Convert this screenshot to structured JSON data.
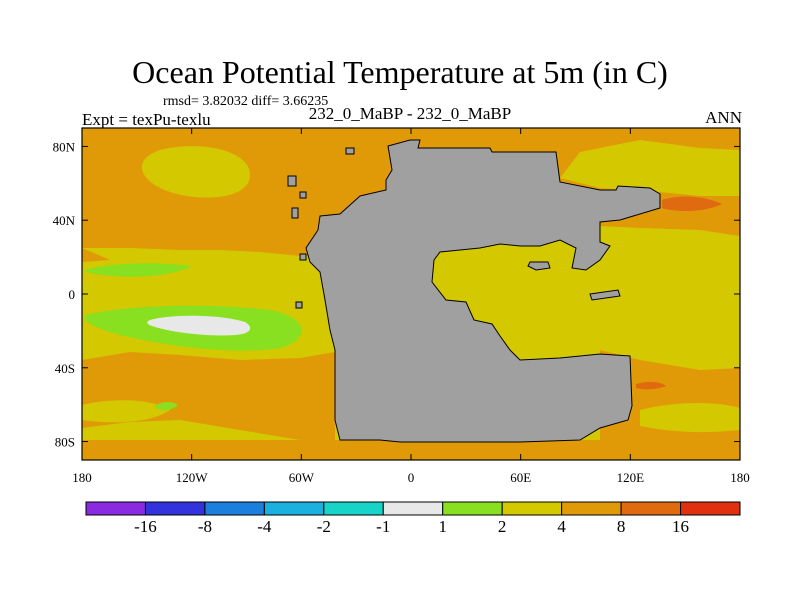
{
  "title": "Ocean Potential Temperature at 5m (in C)",
  "stats_line": "rmsd= 3.82032 diff= 3.66235",
  "left_label": "Expt = texPu-texlu",
  "center_label": "232_0_MaBP - 232_0_MaBP",
  "right_label": "ANN",
  "map": {
    "lon_range": [
      -180,
      180
    ],
    "lat_range": [
      -90,
      90
    ],
    "x_ticks": [
      "180",
      "120W",
      "60W",
      "0",
      "60E",
      "120E",
      "180"
    ],
    "y_ticks": [
      "80N",
      "40N",
      "0",
      "40S",
      "80S"
    ],
    "land_color": "#a0a0a0",
    "background_color": "#d4c800"
  },
  "colorbar": {
    "colors": [
      "#8a2be2",
      "#3333dd",
      "#1a7fdd",
      "#1ab0e0",
      "#18d4c8",
      "#e8e8e8",
      "#88e020",
      "#d4c800",
      "#e09a08",
      "#e06a10",
      "#e03010"
    ],
    "labels": [
      "-16",
      "-8",
      "-4",
      "-2",
      "-1",
      "1",
      "2",
      "4",
      "8",
      "16"
    ]
  }
}
